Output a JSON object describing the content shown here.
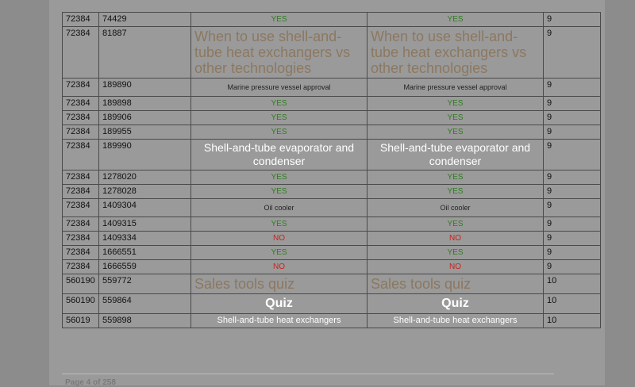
{
  "rows": [
    {
      "a": "72384",
      "b": "74429",
      "c": "YES",
      "d": "YES",
      "e": "9",
      "style": "yes"
    },
    {
      "a": "72384",
      "b": "81887",
      "c": "When to use shell-and-tube heat exchangers vs other technologies",
      "d": "When to use shell-and-tube heat exchangers vs other technologies",
      "e": "9",
      "style": "brown"
    },
    {
      "a": "72384",
      "b": "189890",
      "c": "Marine pressure vessel approval",
      "d": "Marine pressure vessel approval",
      "e": "9",
      "style": "small"
    },
    {
      "a": "72384",
      "b": "189898",
      "c": "YES",
      "d": "YES",
      "e": "9",
      "style": "yes"
    },
    {
      "a": "72384",
      "b": "189906",
      "c": "YES",
      "d": "YES",
      "e": "9",
      "style": "yes"
    },
    {
      "a": "72384",
      "b": "189955",
      "c": "YES",
      "d": "YES",
      "e": "9",
      "style": "yes"
    },
    {
      "a": "72384",
      "b": "189990",
      "c": "Shell-and-tube evaporator and condenser",
      "d": "Shell-and-tube evaporator and condenser",
      "e": "9",
      "style": "white"
    },
    {
      "a": "72384",
      "b": "1278020",
      "c": "YES",
      "d": "YES",
      "e": "9",
      "style": "yes"
    },
    {
      "a": "72384",
      "b": "1278028",
      "c": "YES",
      "d": "YES",
      "e": "9",
      "style": "yes"
    },
    {
      "a": "72384",
      "b": "1409304",
      "c": "Oil cooler",
      "d": "Oil cooler",
      "e": "9",
      "style": "small"
    },
    {
      "a": "72384",
      "b": "1409315",
      "c": "YES",
      "d": "YES",
      "e": "9",
      "style": "yes"
    },
    {
      "a": "72384",
      "b": "1409334",
      "c": "NO",
      "d": "NO",
      "e": "9",
      "style": "no"
    },
    {
      "a": "72384",
      "b": "1666551",
      "c": "YES",
      "d": "YES",
      "e": "9",
      "style": "yes"
    },
    {
      "a": "72384",
      "b": "1666559",
      "c": "NO",
      "d": "NO",
      "e": "9",
      "style": "no"
    },
    {
      "a": "560190",
      "b": "559772",
      "c": "Sales tools quiz",
      "d": "Sales tools quiz",
      "e": "10",
      "style": "brown"
    },
    {
      "a": "560190",
      "b": "559864",
      "c": "Quiz",
      "d": "Quiz",
      "e": "10",
      "style": "white-bold"
    },
    {
      "a": "56019",
      "b": "559898",
      "c": "Shell-and-tube heat exchangers",
      "d": "Shell-and-tube heat exchangers",
      "e": "10",
      "style": "white-sm"
    }
  ],
  "footer": {
    "page_label": "Page 4 of 258"
  }
}
